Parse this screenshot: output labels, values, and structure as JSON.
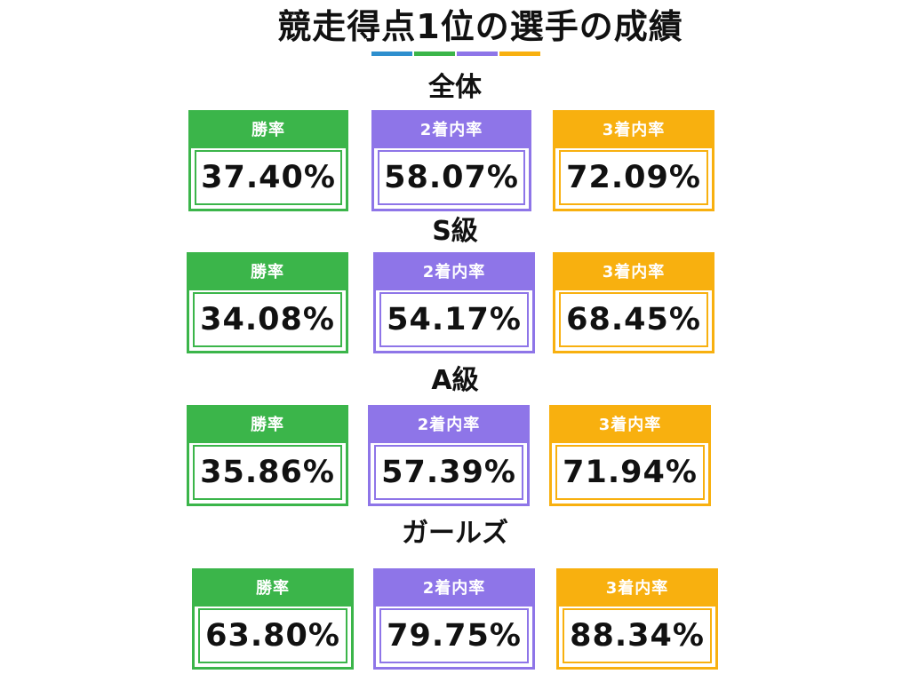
{
  "title": "競走得点1位の選手の成績",
  "colors": {
    "win": "#3bb54a",
    "second": "#8e75e8",
    "third": "#f8b00f",
    "underline": [
      "#2e8fce",
      "#3bb54a",
      "#8e75e8",
      "#f8b00f"
    ]
  },
  "sections": [
    {
      "title": "全体",
      "stats": [
        {
          "label": "勝率",
          "value": "37.40%"
        },
        {
          "label": "2着内率",
          "value": "58.07%"
        },
        {
          "label": "3着内率",
          "value": "72.09%"
        }
      ]
    },
    {
      "title": "S級",
      "stats": [
        {
          "label": "勝率",
          "value": "34.08%"
        },
        {
          "label": "2着内率",
          "value": "54.17%"
        },
        {
          "label": "3着内率",
          "value": "68.45%"
        }
      ]
    },
    {
      "title": "A級",
      "stats": [
        {
          "label": "勝率",
          "value": "35.86%"
        },
        {
          "label": "2着内率",
          "value": "57.39%"
        },
        {
          "label": "3着内率",
          "value": "71.94%"
        }
      ]
    },
    {
      "title": "ガールズ",
      "stats": [
        {
          "label": "勝率",
          "value": "63.80%"
        },
        {
          "label": "2着内率",
          "value": "79.75%"
        },
        {
          "label": "3着内率",
          "value": "88.34%"
        }
      ]
    }
  ]
}
